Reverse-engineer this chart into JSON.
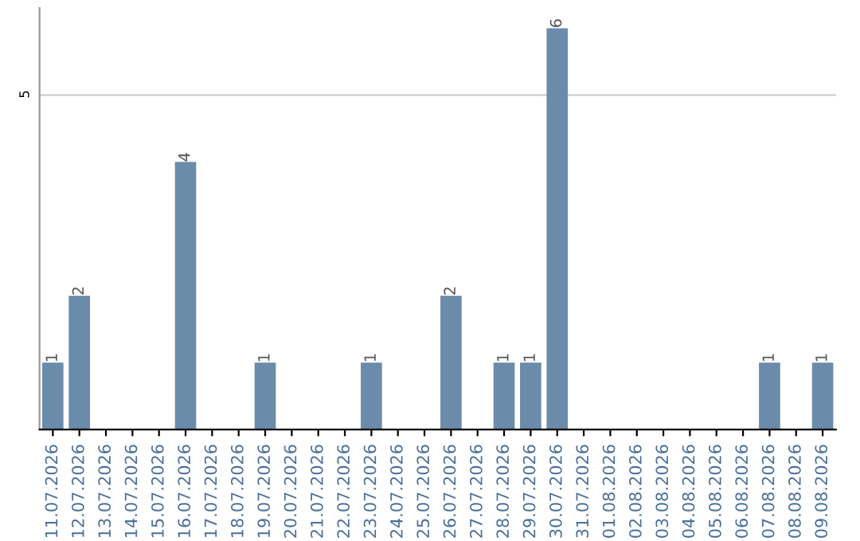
{
  "chart_data": {
    "type": "bar",
    "categories": [
      "11.07.2026",
      "12.07.2026",
      "13.07.2026",
      "14.07.2026",
      "15.07.2026",
      "16.07.2026",
      "17.07.2026",
      "18.07.2026",
      "19.07.2026",
      "20.07.2026",
      "21.07.2026",
      "22.07.2026",
      "23.07.2026",
      "24.07.2026",
      "25.07.2026",
      "26.07.2026",
      "27.07.2026",
      "28.07.2026",
      "29.07.2026",
      "30.07.2026",
      "31.07.2026",
      "01.08.2026",
      "02.08.2026",
      "03.08.2026",
      "04.08.2026",
      "05.08.2026",
      "06.08.2026",
      "07.08.2026",
      "08.08.2026",
      "09.08.2026"
    ],
    "values": [
      1,
      2,
      0,
      0,
      0,
      4,
      0,
      0,
      1,
      0,
      0,
      0,
      1,
      0,
      0,
      2,
      0,
      1,
      1,
      6,
      0,
      0,
      0,
      0,
      0,
      0,
      0,
      1,
      0,
      1
    ],
    "value_labels": [
      "1",
      "2",
      null,
      null,
      null,
      "4",
      null,
      null,
      "1",
      null,
      null,
      null,
      "1",
      null,
      null,
      "2",
      null,
      "1",
      "1",
      "6",
      null,
      null,
      null,
      null,
      null,
      null,
      null,
      "1",
      null,
      "1"
    ],
    "color": "#6b8bab",
    "ylim": [
      0,
      6.3
    ],
    "yticks": [
      5
    ],
    "grid": "y"
  }
}
